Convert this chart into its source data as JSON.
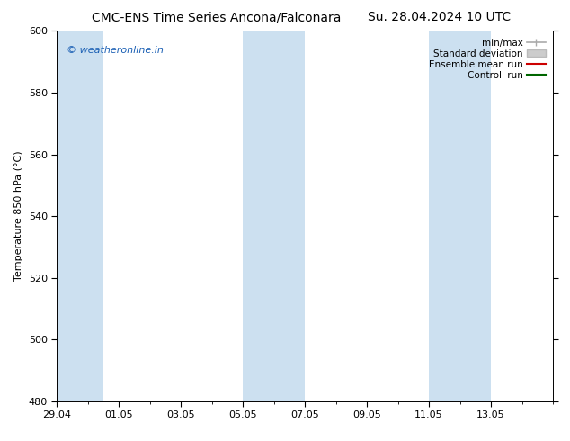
{
  "title_left": "CMC-ENS Time Series Ancona/Falconara",
  "title_right": "Su. 28.04.2024 10 UTC",
  "ylabel": "Temperature 850 hPa (°C)",
  "xlim_dates": [
    "29.04",
    "01.05",
    "03.05",
    "05.05",
    "07.05",
    "09.05",
    "11.05",
    "13.05"
  ],
  "ylim": [
    480,
    600
  ],
  "yticks": [
    480,
    500,
    520,
    540,
    560,
    580,
    600
  ],
  "xlim": [
    0,
    16
  ],
  "shaded_bands": [
    {
      "x_start": 0,
      "x_end": 1.5
    },
    {
      "x_start": 6.0,
      "x_end": 8.0
    },
    {
      "x_start": 12.0,
      "x_end": 14.0
    }
  ],
  "band_color": "#cce0f0",
  "watermark_text": "© weatheronline.in",
  "watermark_color": "#1a5fb4",
  "legend_items": [
    {
      "label": "min/max",
      "color": "#aaaaaa",
      "lw": 1.2
    },
    {
      "label": "Standard deviation",
      "color": "#cccccc",
      "lw": 5
    },
    {
      "label": "Ensemble mean run",
      "color": "#cc0000",
      "lw": 1.5
    },
    {
      "label": "Controll run",
      "color": "#006600",
      "lw": 1.5
    }
  ],
  "bg_color": "#ffffff",
  "title_fontsize": 10,
  "tick_fontsize": 8,
  "ylabel_fontsize": 8,
  "legend_fontsize": 7.5
}
